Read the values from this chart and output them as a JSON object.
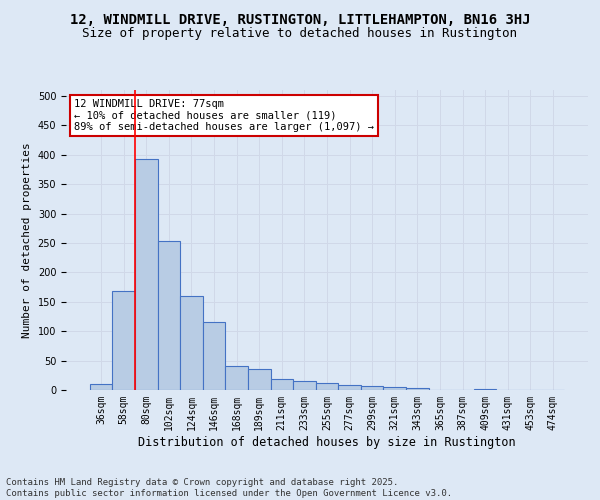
{
  "title": "12, WINDMILL DRIVE, RUSTINGTON, LITTLEHAMPTON, BN16 3HJ",
  "subtitle": "Size of property relative to detached houses in Rustington",
  "xlabel": "Distribution of detached houses by size in Rustington",
  "ylabel": "Number of detached properties",
  "categories": [
    "36sqm",
    "58sqm",
    "80sqm",
    "102sqm",
    "124sqm",
    "146sqm",
    "168sqm",
    "189sqm",
    "211sqm",
    "233sqm",
    "255sqm",
    "277sqm",
    "299sqm",
    "321sqm",
    "343sqm",
    "365sqm",
    "387sqm",
    "409sqm",
    "431sqm",
    "453sqm",
    "474sqm"
  ],
  "values": [
    10,
    168,
    393,
    253,
    160,
    115,
    40,
    36,
    18,
    15,
    12,
    8,
    7,
    5,
    4,
    0,
    0,
    1,
    0,
    0,
    0
  ],
  "bar_color": "#b8cce4",
  "bar_edge_color": "#4472c4",
  "grid_color": "#d0d8e8",
  "background_color": "#dde8f5",
  "annotation_box_text": "12 WINDMILL DRIVE: 77sqm\n← 10% of detached houses are smaller (119)\n89% of semi-detached houses are larger (1,097) →",
  "annotation_box_color": "#ffffff",
  "annotation_box_edge_color": "#cc0000",
  "red_line_x": 1.5,
  "ylim": [
    0,
    510
  ],
  "yticks": [
    0,
    50,
    100,
    150,
    200,
    250,
    300,
    350,
    400,
    450,
    500
  ],
  "footer_line1": "Contains HM Land Registry data © Crown copyright and database right 2025.",
  "footer_line2": "Contains public sector information licensed under the Open Government Licence v3.0.",
  "title_fontsize": 10,
  "subtitle_fontsize": 9,
  "tick_fontsize": 7,
  "ylabel_fontsize": 8,
  "xlabel_fontsize": 8.5,
  "footer_fontsize": 6.5,
  "annot_fontsize": 7.5
}
